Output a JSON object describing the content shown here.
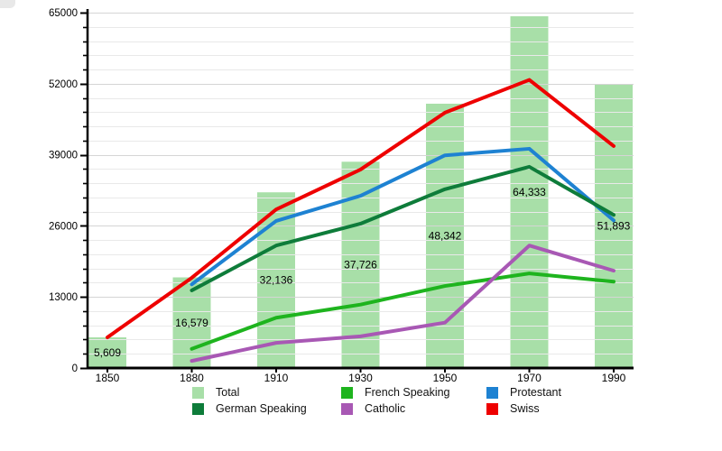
{
  "chart_data": {
    "type": "bar+line combo",
    "title": "",
    "categories": [
      "1850",
      "1880",
      "1910",
      "1930",
      "1950",
      "1970",
      "1990"
    ],
    "bars": {
      "name": "Total",
      "color": "#a8dfa8",
      "values": [
        5609,
        16579,
        32136,
        37726,
        48342,
        64333,
        51893
      ],
      "labels": [
        "5,609",
        "16,579",
        "32,136",
        "37,726",
        "48,342",
        "64,333",
        "51,893"
      ]
    },
    "series": [
      {
        "name": "French Speaking",
        "color": "#1eb41e",
        "values": [
          null,
          3500,
          9200,
          11600,
          15000,
          17300,
          15800
        ]
      },
      {
        "name": "Protestant",
        "color": "#1e82d2",
        "values": [
          null,
          15300,
          26900,
          31500,
          38900,
          40100,
          27000
        ]
      },
      {
        "name": "German Speaking",
        "color": "#0e7c3a",
        "values": [
          null,
          14200,
          22400,
          26400,
          32700,
          36800,
          28000
        ]
      },
      {
        "name": "Catholic",
        "color": "#a858b4",
        "values": [
          null,
          1300,
          4600,
          5800,
          8300,
          22400,
          17800
        ]
      },
      {
        "name": "Swiss",
        "color": "#ee0000",
        "values": [
          5609,
          16500,
          29000,
          36300,
          46700,
          52700,
          40600
        ]
      }
    ],
    "y_axis": {
      "min": 0,
      "max": 65000,
      "major_step": 13000,
      "minor_step": 2600,
      "tick_labels": [
        "0",
        "13000",
        "26000",
        "39000",
        "52000",
        "65000"
      ]
    },
    "x_axis": {
      "tick_labels": [
        "1850",
        "1880",
        "1910",
        "1930",
        "1950",
        "1970",
        "1990"
      ]
    },
    "grid": true,
    "legend": {
      "position": "bottom",
      "entries": [
        {
          "label": "Total",
          "color": "#a8dfa8"
        },
        {
          "label": "French Speaking",
          "color": "#1eb41e"
        },
        {
          "label": "Protestant",
          "color": "#1e82d2"
        },
        {
          "label": "German Speaking",
          "color": "#0e7c3a"
        },
        {
          "label": "Catholic",
          "color": "#a858b4"
        },
        {
          "label": "Swiss",
          "color": "#ee0000"
        }
      ]
    }
  }
}
